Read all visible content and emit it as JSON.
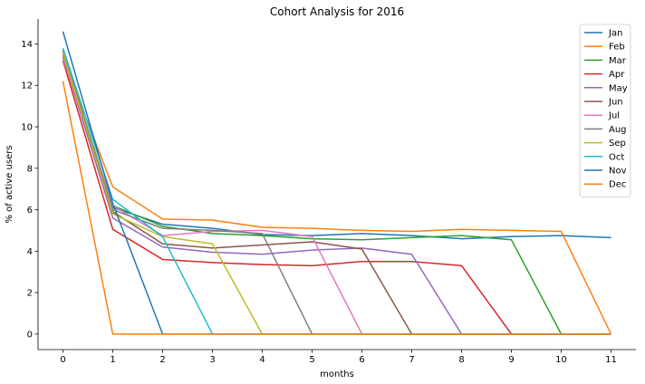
{
  "chart_data": {
    "type": "line",
    "title": "Cohort Analysis for 2016",
    "xlabel": "months",
    "ylabel": "% of active users",
    "xlim": [
      -0.5,
      11.5
    ],
    "ylim": [
      -0.75,
      15.2
    ],
    "xticks": [
      0,
      1,
      2,
      3,
      4,
      5,
      6,
      7,
      8,
      9,
      10,
      11
    ],
    "yticks": [
      0,
      2,
      4,
      6,
      8,
      10,
      12,
      14
    ],
    "grid": false,
    "legend_position": "top-right",
    "series": [
      {
        "name": "Jan",
        "color": "#1f77b4",
        "x": [
          0,
          1,
          2,
          3,
          4,
          5,
          6,
          7,
          8,
          9,
          10,
          11
        ],
        "values": [
          13.6,
          6.1,
          5.3,
          5.1,
          4.8,
          4.75,
          4.85,
          4.75,
          4.6,
          4.7,
          4.75,
          4.65
        ]
      },
      {
        "name": "Feb",
        "color": "#ff7f0e",
        "x": [
          0,
          1,
          2,
          3,
          4,
          5,
          6,
          7,
          8,
          9,
          10,
          11
        ],
        "values": [
          13.3,
          7.1,
          5.55,
          5.5,
          5.15,
          5.1,
          5.0,
          4.95,
          5.05,
          5.0,
          4.95,
          0.0
        ]
      },
      {
        "name": "Mar",
        "color": "#2ca02c",
        "x": [
          0,
          1,
          2,
          3,
          4,
          5,
          6,
          7,
          8,
          9,
          10,
          11
        ],
        "values": [
          13.5,
          6.2,
          5.2,
          4.85,
          4.75,
          4.6,
          4.55,
          4.65,
          4.75,
          4.55,
          0.0,
          0.0
        ]
      },
      {
        "name": "Apr",
        "color": "#d62728",
        "x": [
          0,
          1,
          2,
          3,
          4,
          5,
          6,
          7,
          8,
          9,
          10,
          11
        ],
        "values": [
          13.2,
          5.05,
          3.6,
          3.45,
          3.35,
          3.3,
          3.5,
          3.5,
          3.3,
          0.0,
          0.0,
          0.0
        ]
      },
      {
        "name": "May",
        "color": "#9467bd",
        "x": [
          0,
          1,
          2,
          3,
          4,
          5,
          6,
          7,
          8,
          9,
          10,
          11
        ],
        "values": [
          13.4,
          5.6,
          4.2,
          3.95,
          3.85,
          4.05,
          4.15,
          3.85,
          0.0,
          0.0,
          0.0,
          0.0
        ]
      },
      {
        "name": "Jun",
        "color": "#8c564b",
        "x": [
          0,
          1,
          2,
          3,
          4,
          5,
          6,
          7,
          8,
          9,
          10,
          11
        ],
        "values": [
          13.7,
          5.9,
          4.35,
          4.15,
          4.3,
          4.45,
          4.1,
          0.0,
          0.0,
          0.0,
          0.0,
          0.0
        ]
      },
      {
        "name": "Jul",
        "color": "#e377c2",
        "x": [
          0,
          1,
          2,
          3,
          4,
          5,
          6,
          7,
          8,
          9,
          10,
          11
        ],
        "values": [
          13.3,
          6.2,
          4.75,
          4.95,
          5.0,
          4.7,
          0.0,
          0.0,
          0.0,
          0.0,
          0.0,
          0.0
        ]
      },
      {
        "name": "Aug",
        "color": "#7f7f7f",
        "x": [
          0,
          1,
          2,
          3,
          4,
          5,
          6,
          7,
          8,
          9,
          10,
          11
        ],
        "values": [
          13.5,
          6.0,
          5.1,
          5.0,
          4.85,
          0.0,
          0.0,
          0.0,
          0.0,
          0.0,
          0.0,
          0.0
        ]
      },
      {
        "name": "Sep",
        "color": "#bcbd22",
        "x": [
          0,
          1,
          2,
          3,
          4,
          5,
          6,
          7,
          8,
          9,
          10,
          11
        ],
        "values": [
          13.6,
          5.8,
          4.7,
          4.35,
          0.0,
          0.0,
          0.0,
          0.0,
          0.0,
          0.0,
          0.0,
          0.0
        ]
      },
      {
        "name": "Oct",
        "color": "#17becf",
        "x": [
          0,
          1,
          2,
          3,
          4,
          5,
          6,
          7,
          8,
          9,
          10,
          11
        ],
        "values": [
          13.8,
          6.5,
          4.7,
          0.0,
          0.0,
          0.0,
          0.0,
          0.0,
          0.0,
          0.0,
          0.0,
          0.0
        ]
      },
      {
        "name": "Nov",
        "color": "#1f77b4",
        "x": [
          0,
          1,
          2,
          3,
          4,
          5,
          6,
          7,
          8,
          9,
          10,
          11
        ],
        "values": [
          14.6,
          6.3,
          0.0,
          0.0,
          0.0,
          0.0,
          0.0,
          0.0,
          0.0,
          0.0,
          0.0,
          0.0
        ]
      },
      {
        "name": "Dec",
        "color": "#ff7f0e",
        "x": [
          0,
          1,
          2,
          3,
          4,
          5,
          6,
          7,
          8,
          9,
          10,
          11
        ],
        "values": [
          12.2,
          0.0,
          0.0,
          0.0,
          0.0,
          0.0,
          0.0,
          0.0,
          0.0,
          0.0,
          0.0,
          0.0
        ]
      }
    ]
  }
}
